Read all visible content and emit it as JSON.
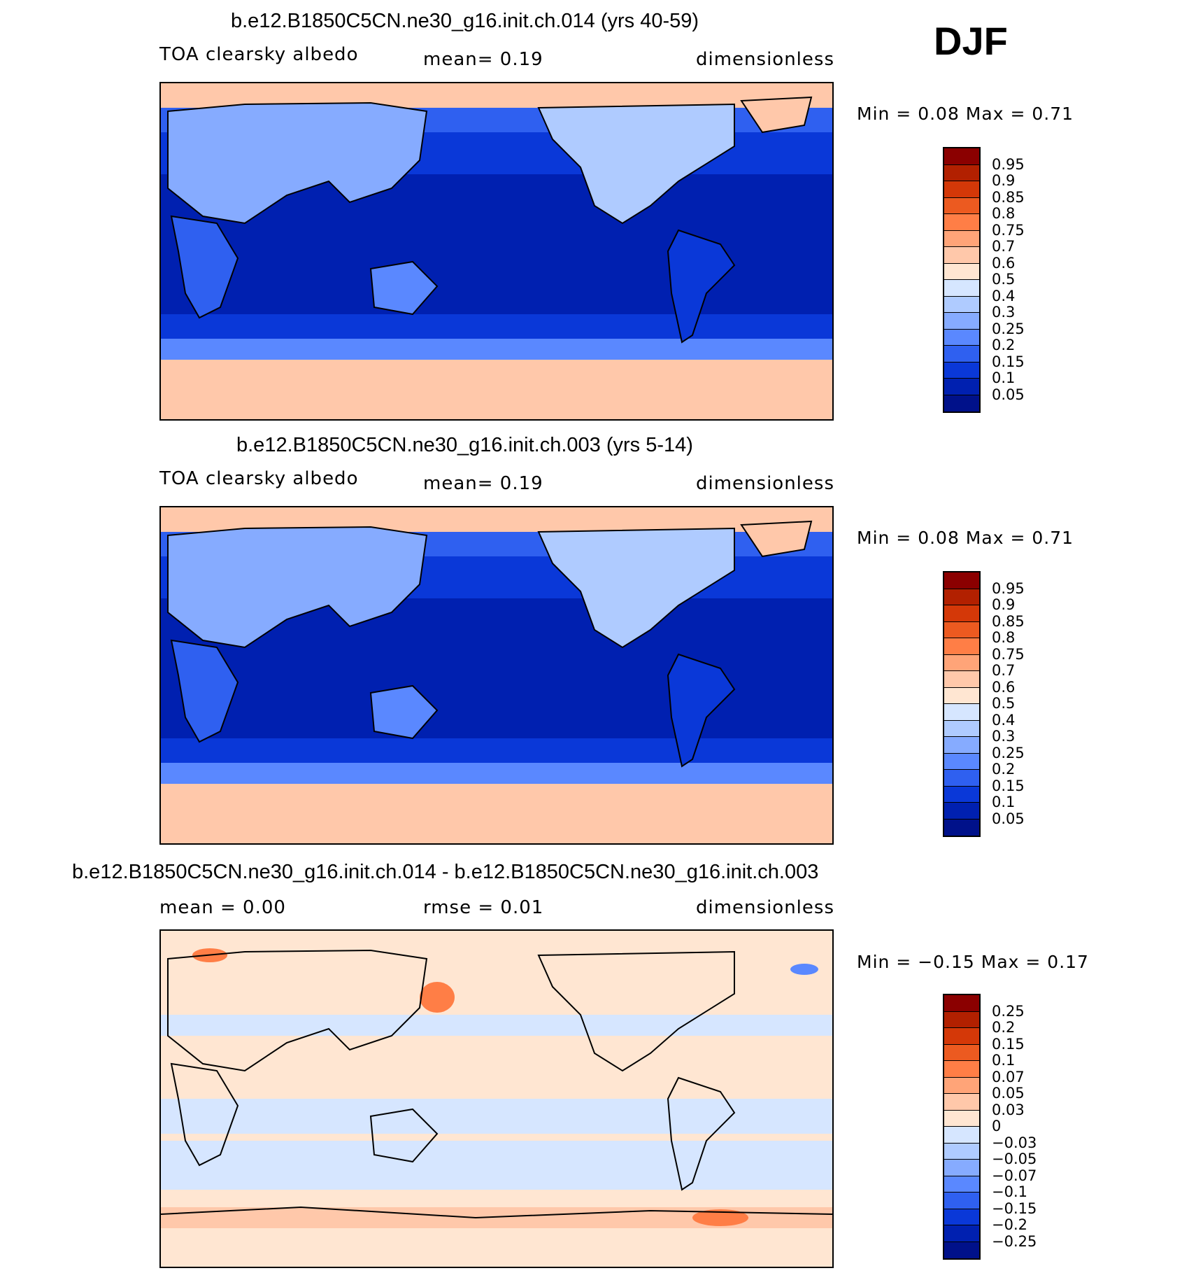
{
  "season": "DJF",
  "panels": [
    {
      "title": "b.e12.B1850C5CN.ne30_g16.init.ch.014 (yrs 40-59)",
      "left_label": "TOA clearsky albedo",
      "center_label": "mean=    0.19",
      "right_label": "dimensionless",
      "minmax": "Min =    0.08  Max =    0.71",
      "colorbar": {
        "levels": [
          "0.95",
          "0.9",
          "0.85",
          "0.8",
          "0.75",
          "0.7",
          "0.6",
          "0.5",
          "0.4",
          "0.3",
          "0.25",
          "0.2",
          "0.15",
          "0.1",
          "0.05"
        ],
        "colors": [
          "#8b0000",
          "#b22000",
          "#d43808",
          "#ec5a20",
          "#ff7e46",
          "#ffa478",
          "#ffc8aa",
          "#ffe6d2",
          "#d6e6ff",
          "#afcbff",
          "#86abff",
          "#5a88ff",
          "#2f60f0",
          "#0a38d8",
          "#0020b0",
          "#00118a"
        ]
      }
    },
    {
      "title": "b.e12.B1850C5CN.ne30_g16.init.ch.003 (yrs 5-14)",
      "left_label": "TOA clearsky albedo",
      "center_label": "mean=    0.19",
      "right_label": "dimensionless",
      "minmax": "Min =    0.08  Max =    0.71",
      "colorbar": {
        "levels": [
          "0.95",
          "0.9",
          "0.85",
          "0.8",
          "0.75",
          "0.7",
          "0.6",
          "0.5",
          "0.4",
          "0.3",
          "0.25",
          "0.2",
          "0.15",
          "0.1",
          "0.05"
        ],
        "colors": [
          "#8b0000",
          "#b22000",
          "#d43808",
          "#ec5a20",
          "#ff7e46",
          "#ffa478",
          "#ffc8aa",
          "#ffe6d2",
          "#d6e6ff",
          "#afcbff",
          "#86abff",
          "#5a88ff",
          "#2f60f0",
          "#0a38d8",
          "#0020b0",
          "#00118a"
        ]
      }
    },
    {
      "title": "b.e12.B1850C5CN.ne30_g16.init.ch.014 - b.e12.B1850C5CN.ne30_g16.init.ch.003",
      "left_label": "mean =    0.00",
      "center_label": "rmse =    0.01",
      "right_label": "dimensionless",
      "minmax": "Min =  −0.15  Max =    0.17",
      "colorbar": {
        "levels": [
          "0.25",
          "0.2",
          "0.15",
          "0.1",
          "0.07",
          "0.05",
          "0.03",
          "0",
          "−0.03",
          "−0.05",
          "−0.07",
          "−0.1",
          "−0.15",
          "−0.2",
          "−0.25"
        ],
        "colors": [
          "#8b0000",
          "#b22000",
          "#d43808",
          "#ec5a20",
          "#ff7e46",
          "#ffa478",
          "#ffc8aa",
          "#ffe6d2",
          "#d6e6ff",
          "#afcbff",
          "#86abff",
          "#5a88ff",
          "#2f60f0",
          "#0a38d8",
          "#0020b0",
          "#00118a"
        ]
      }
    }
  ]
}
